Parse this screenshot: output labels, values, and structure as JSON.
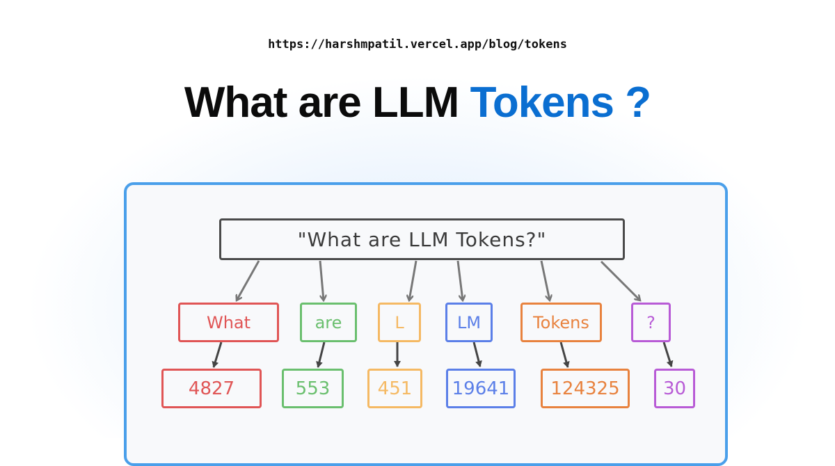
{
  "header": {
    "url": "https://harshmpatil.vercel.app/blog/tokens",
    "title_main": "What are LLM",
    "title_highlight": "Tokens ?",
    "highlight_color": "#0a6ed1"
  },
  "diagram": {
    "root_text": "\"What are LLM Tokens?\"",
    "tokens": [
      {
        "text": "What",
        "id": "4827",
        "color": "#e05555"
      },
      {
        "text": "are",
        "id": "553",
        "color": "#6abf6e"
      },
      {
        "text": "L",
        "id": "451",
        "color": "#f5b963"
      },
      {
        "text": "LM",
        "id": "19641",
        "color": "#5b7fe8"
      },
      {
        "text": "Tokens",
        "id": "124325",
        "color": "#e8823e"
      },
      {
        "text": "?",
        "id": "30",
        "color": "#b85bd6"
      }
    ]
  }
}
